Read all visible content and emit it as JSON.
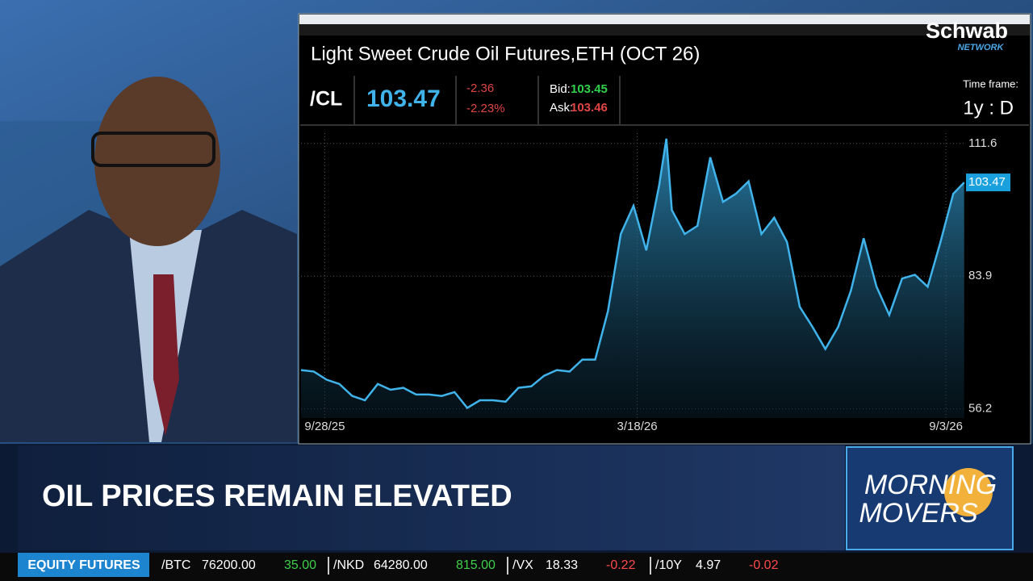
{
  "logo": {
    "brand": "Schwab",
    "sub": "NETWORK"
  },
  "quote": {
    "symbol": "/CL",
    "last": "103.47",
    "change": "-2.36",
    "change_pct": "-2.23%",
    "bid_label": "Bid:",
    "bid": "103.45",
    "ask_label": "Ask:",
    "ask": "103.46",
    "timeframe_label": "Time frame:",
    "timeframe": "1y : D"
  },
  "lower_third": {
    "headline": "OIL PRICES REMAIN ELEVATED",
    "show_line1": "MORNING",
    "show_line2": "MOVERS"
  },
  "ticker": {
    "label": "EQUITY FUTURES",
    "items": [
      {
        "symbol": "/BTC",
        "price": "76200.00",
        "change": "35.00"
      },
      {
        "symbol": "/NKD",
        "price": "64280.00",
        "change": "815.00"
      },
      {
        "symbol": "/VX",
        "price": "18.33",
        "change": "-0.22"
      },
      {
        "symbol": "/10Y",
        "price": "4.97",
        "change": "-0.02"
      }
    ]
  },
  "chart_data": {
    "type": "line",
    "title": "Light Sweet Crude Oil Futures,ETH (OCT 26)",
    "color": "#3fb3ea",
    "grid": true,
    "x": [
      "9/15/25",
      "9/22/25",
      "9/29/25",
      "10/6/25",
      "10/13/25",
      "10/20/25",
      "10/27/25",
      "11/3/25",
      "11/10/25",
      "11/17/25",
      "11/24/25",
      "12/1/25",
      "12/8/25",
      "12/15/25",
      "12/22/25",
      "12/29/25",
      "1/5/26",
      "1/12/26",
      "1/19/26",
      "1/26/26",
      "2/2/26",
      "2/9/26",
      "2/16/26",
      "2/23/26",
      "3/2/26",
      "3/9/26",
      "3/16/26",
      "3/23/26",
      "3/30/26",
      "4/3/26",
      "4/6/26",
      "4/13/26",
      "4/20/26",
      "4/27/26",
      "5/4/26",
      "5/11/26",
      "5/18/26",
      "5/25/26",
      "6/1/26",
      "6/8/26",
      "6/15/26",
      "6/22/26",
      "6/29/26",
      "7/6/26",
      "7/13/26",
      "7/20/26",
      "7/27/26",
      "8/3/26",
      "8/10/26",
      "8/17/26",
      "8/24/26",
      "8/31/26",
      "9/7/26",
      "9/13/26"
    ],
    "values": [
      64.3,
      64.0,
      62.3,
      61.4,
      58.9,
      58.0,
      61.4,
      60.2,
      60.6,
      59.2,
      59.2,
      58.9,
      59.7,
      56.4,
      58.0,
      58.0,
      57.7,
      60.6,
      60.9,
      63.1,
      64.3,
      64.0,
      66.5,
      66.5,
      76.6,
      92.7,
      98.6,
      89.3,
      102.8,
      112.6,
      97.7,
      92.7,
      94.4,
      108.7,
      99.4,
      101.1,
      103.7,
      92.7,
      96.1,
      91.0,
      77.5,
      73.3,
      68.7,
      73.3,
      80.9,
      91.8,
      81.7,
      75.8,
      83.4,
      84.2,
      81.7,
      91.0,
      101.1,
      103.47
    ],
    "last_value": 103.47,
    "xlim": [
      "9/15/25",
      "9/14/26"
    ],
    "xticks": [
      "9/28/25",
      "3/18/26",
      "9/3/26"
    ],
    "ylim": [
      54.3,
      115.1
    ],
    "yticks": [
      56.2,
      83.9,
      111.6
    ]
  }
}
